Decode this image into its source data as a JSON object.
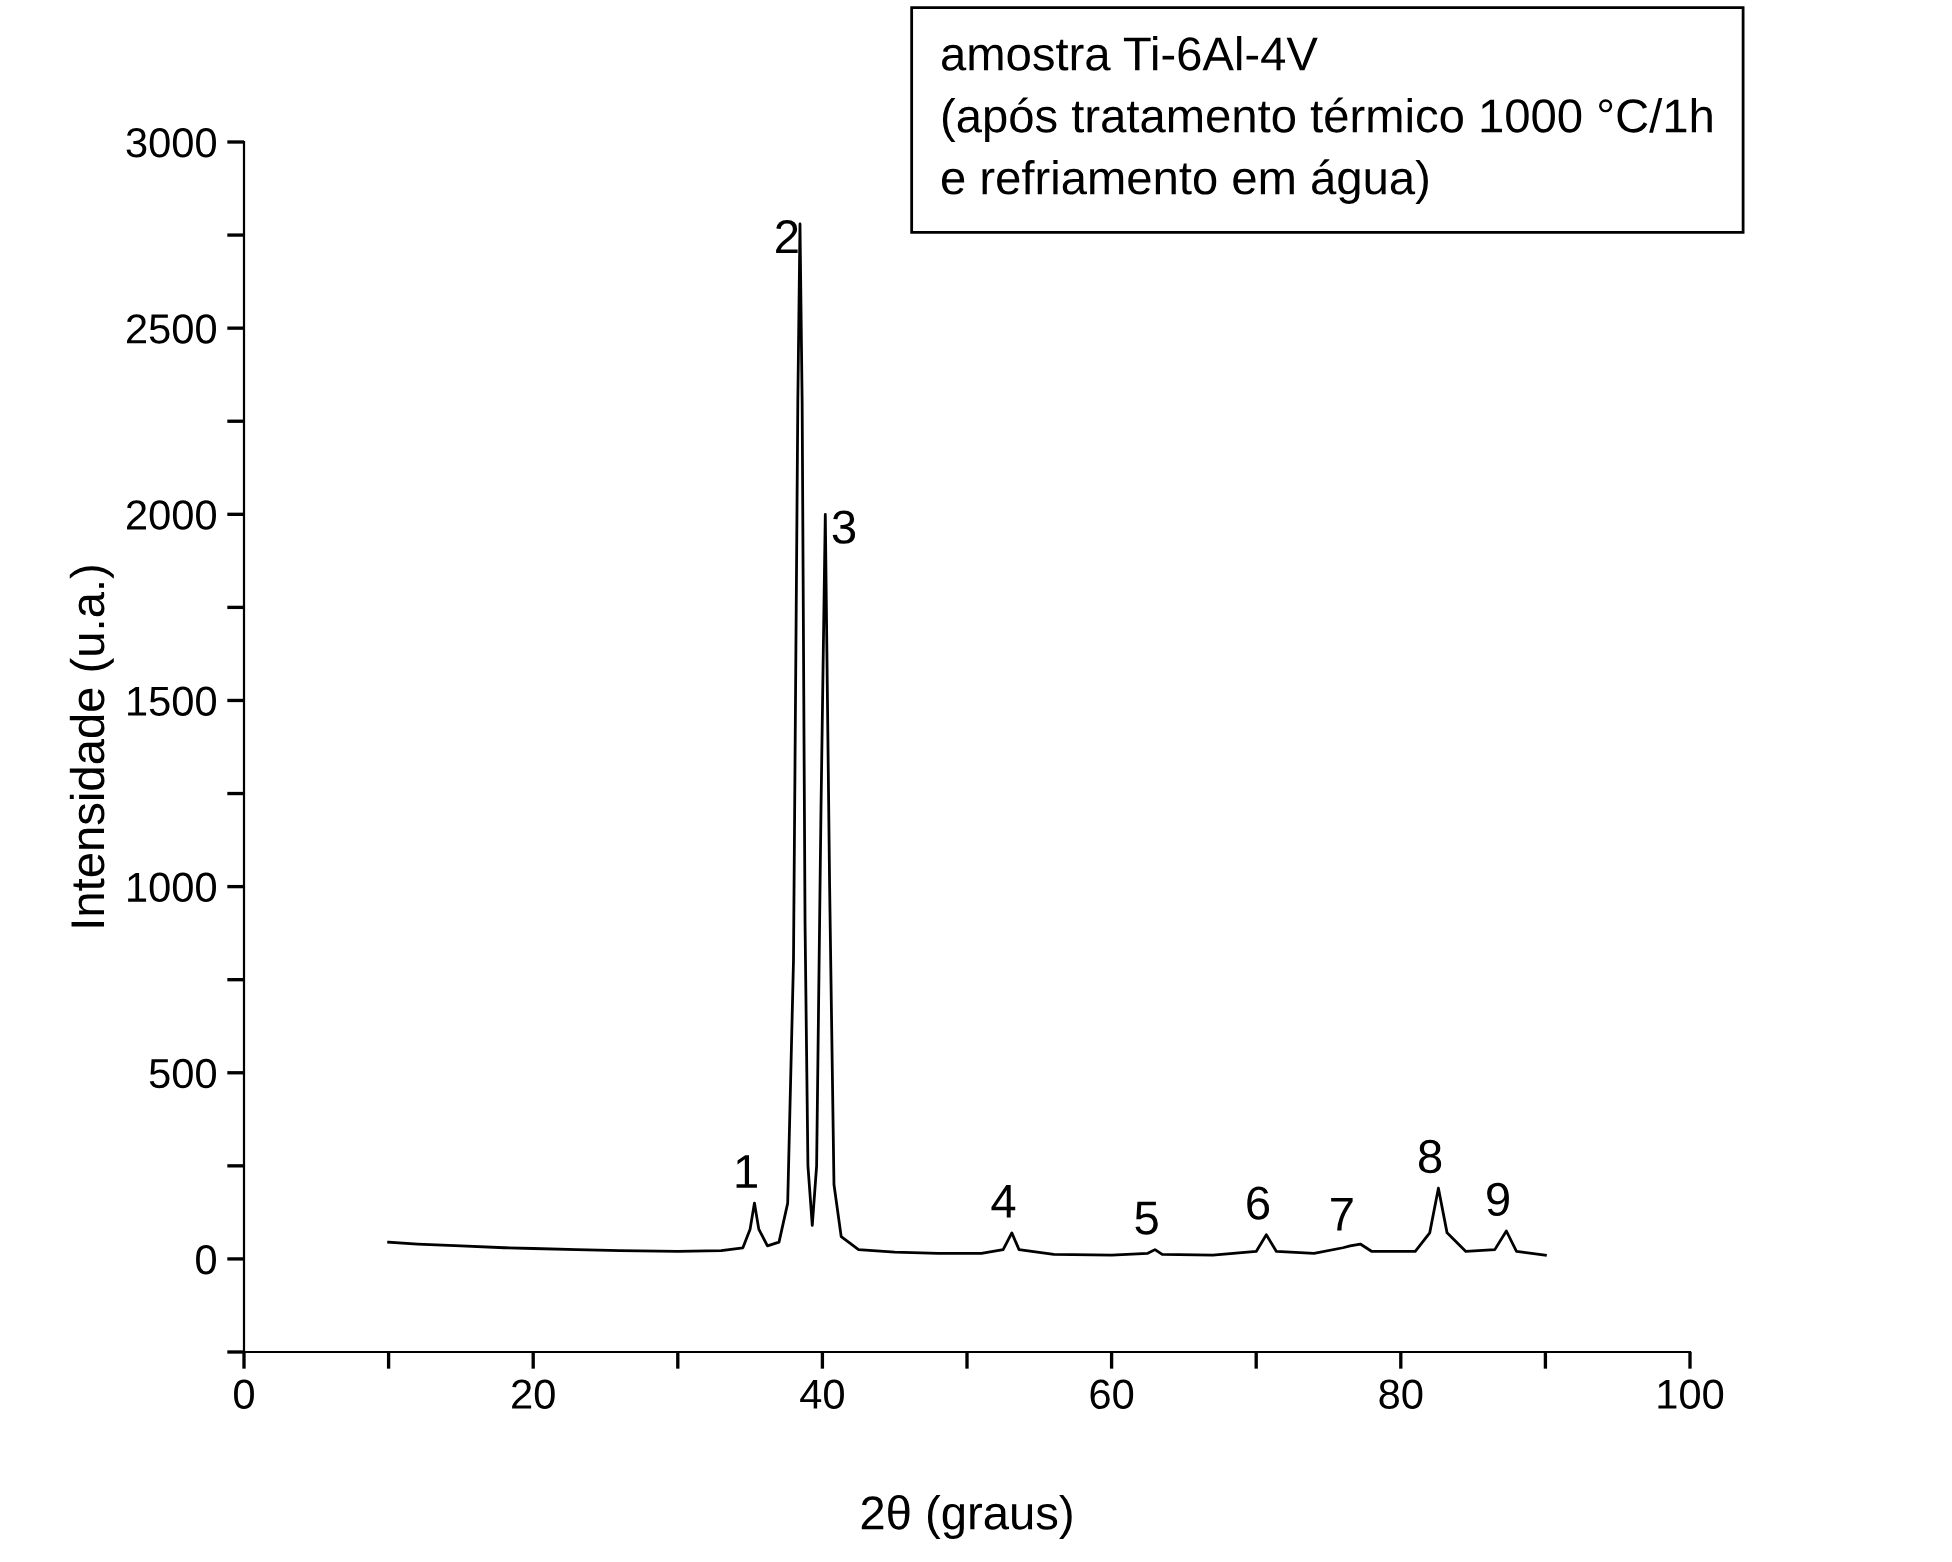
{
  "chart_data": {
    "type": "line",
    "xlabel": "2θ (graus)",
    "ylabel": "Intensidade (u.a.)",
    "xlim": [
      0,
      100
    ],
    "ylim": [
      -250,
      3000
    ],
    "xticks": [
      0,
      {
        "value": 10,
        "label": null
      },
      20,
      {
        "value": 30,
        "label": null
      },
      40,
      {
        "value": 50,
        "label": null
      },
      60,
      {
        "value": 70,
        "label": null
      },
      80,
      {
        "value": 90,
        "label": null
      },
      100
    ],
    "yticks": [
      {
        "value": -250,
        "label": null
      },
      0,
      {
        "value": 250,
        "label": null
      },
      500,
      {
        "value": 750,
        "label": null
      },
      1000,
      {
        "value": 1250,
        "label": null
      },
      1500,
      {
        "value": 1750,
        "label": null
      },
      2000,
      {
        "value": 2250,
        "label": null
      },
      2500,
      {
        "value": 2750,
        "label": null
      },
      3000
    ],
    "marker": "none",
    "line_style": "solid",
    "series": [
      {
        "color": "#000000",
        "x": [
          10,
          12,
          15,
          18,
          20,
          23,
          26,
          30,
          33,
          34.5,
          35.0,
          35.3,
          35.6,
          36.2,
          37.0,
          37.6,
          38.0,
          38.3,
          38.45,
          38.6,
          38.8,
          39.0,
          39.3,
          39.6,
          39.9,
          40.2,
          40.5,
          40.8,
          41.3,
          42.5,
          45,
          48,
          51,
          52.5,
          53.1,
          53.6,
          56,
          60,
          62.5,
          63,
          63.5,
          67,
          70,
          70.7,
          71.4,
          74,
          76,
          76.5,
          77.2,
          78,
          81,
          82,
          82.6,
          83.2,
          84.5,
          86.5,
          87.3,
          88,
          90
        ],
        "values": [
          45,
          40,
          35,
          30,
          28,
          25,
          22,
          20,
          22,
          30,
          80,
          150,
          80,
          35,
          45,
          150,
          800,
          2300,
          2780,
          2300,
          900,
          250,
          90,
          250,
          1200,
          2000,
          1000,
          200,
          60,
          25,
          18,
          15,
          15,
          25,
          70,
          25,
          12,
          10,
          15,
          25,
          12,
          10,
          20,
          65,
          20,
          15,
          30,
          35,
          40,
          20,
          20,
          70,
          190,
          70,
          20,
          25,
          75,
          20,
          10
        ]
      }
    ],
    "annotations": [
      {
        "text": "1",
        "x": 35.3,
        "y": 150
      },
      {
        "text": "2",
        "x": 38.45,
        "y": 2780
      },
      {
        "text": "3",
        "x": 40.2,
        "y": 2000
      },
      {
        "text": "4",
        "x": 53.1,
        "y": 70
      },
      {
        "text": "5",
        "x": 63,
        "y": 25
      },
      {
        "text": "6",
        "x": 70.7,
        "y": 65
      },
      {
        "text": "7",
        "x": 76.5,
        "y": 35
      },
      {
        "text": "8",
        "x": 82.6,
        "y": 190
      },
      {
        "text": "9",
        "x": 87.3,
        "y": 75
      },
      "amostra Ti-6Al-4V\n(após tratamento térmico 1000 °C/1h\ne refriamento em água)"
    ]
  }
}
